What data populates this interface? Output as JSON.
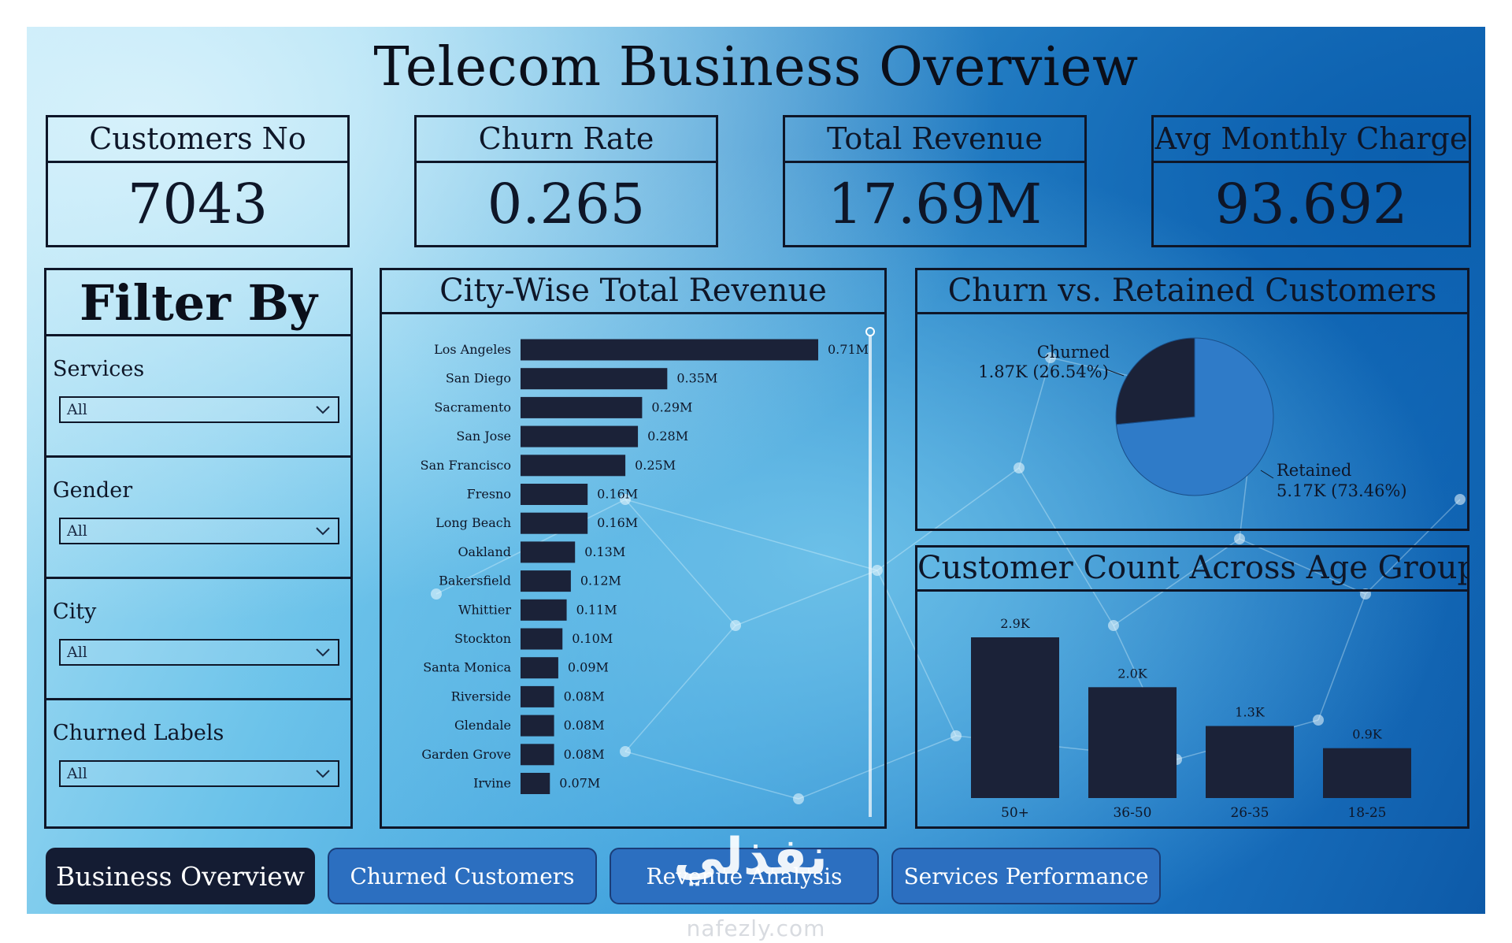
{
  "title": "Telecom Business Overview",
  "kpis": [
    {
      "label": "Customers No",
      "value": "7043"
    },
    {
      "label": "Churn Rate",
      "value": "0.265"
    },
    {
      "label": "Total Revenue",
      "value": "17.69M"
    },
    {
      "label": "Avg Monthly Charge",
      "value": "93.692"
    }
  ],
  "filter": {
    "title": "Filter By",
    "sections": [
      {
        "label": "Services",
        "value": "All"
      },
      {
        "label": "Gender",
        "value": "All"
      },
      {
        "label": "City",
        "value": "All"
      },
      {
        "label": "Churned Labels",
        "value": "All"
      }
    ]
  },
  "revenue_panel": {
    "title": "City-Wise Total Revenue"
  },
  "pie_panel": {
    "title": "Churn vs. Retained Customers",
    "churned_name": "Churned",
    "churned_detail": "1.87K (26.54%)",
    "retained_name": "Retained",
    "retained_detail": "5.17K (73.46%)"
  },
  "age_panel": {
    "title": "Customer Count Across Age Groups"
  },
  "tabs": [
    "Business Overview",
    "Churned Customers",
    "Revenue Analysis",
    "Services Performance"
  ],
  "watermark": {
    "arabic": "نفذلي",
    "site": "nafezly.com"
  },
  "colors": {
    "bar": "#1b2238",
    "pie_retained": "#2f7bc8",
    "pie_churned": "#1b2238",
    "active_tab": "#141c33",
    "inactive_tab": "#2c6fc0"
  },
  "chart_data": [
    {
      "type": "bar",
      "orientation": "horizontal",
      "title": "City-Wise Total Revenue",
      "categories": [
        "Los Angeles",
        "San Diego",
        "Sacramento",
        "San Jose",
        "San Francisco",
        "Fresno",
        "Long Beach",
        "Oakland",
        "Bakersfield",
        "Whittier",
        "Stockton",
        "Santa Monica",
        "Riverside",
        "Glendale",
        "Garden Grove",
        "Irvine"
      ],
      "values": [
        0.71,
        0.35,
        0.29,
        0.28,
        0.25,
        0.16,
        0.16,
        0.13,
        0.12,
        0.11,
        0.1,
        0.09,
        0.08,
        0.08,
        0.08,
        0.07
      ],
      "labels": [
        "0.71M",
        "0.35M",
        "0.29M",
        "0.28M",
        "0.25M",
        "0.16M",
        "0.16M",
        "0.13M",
        "0.12M",
        "0.11M",
        "0.10M",
        "0.09M",
        "0.08M",
        "0.08M",
        "0.08M",
        "0.07M"
      ],
      "unit": "M"
    },
    {
      "type": "pie",
      "title": "Churn vs. Retained Customers",
      "slices": [
        {
          "name": "Churned",
          "value": 1.87,
          "percent": 26.54
        },
        {
          "name": "Retained",
          "value": 5.17,
          "percent": 73.46
        }
      ]
    },
    {
      "type": "bar",
      "title": "Customer Count Across Age Groups",
      "categories": [
        "50+",
        "36-50",
        "26-35",
        "18-25"
      ],
      "values": [
        2.9,
        2.0,
        1.3,
        0.9
      ],
      "labels": [
        "2.9K",
        "2.0K",
        "1.3K",
        "0.9K"
      ],
      "unit": "K"
    }
  ]
}
